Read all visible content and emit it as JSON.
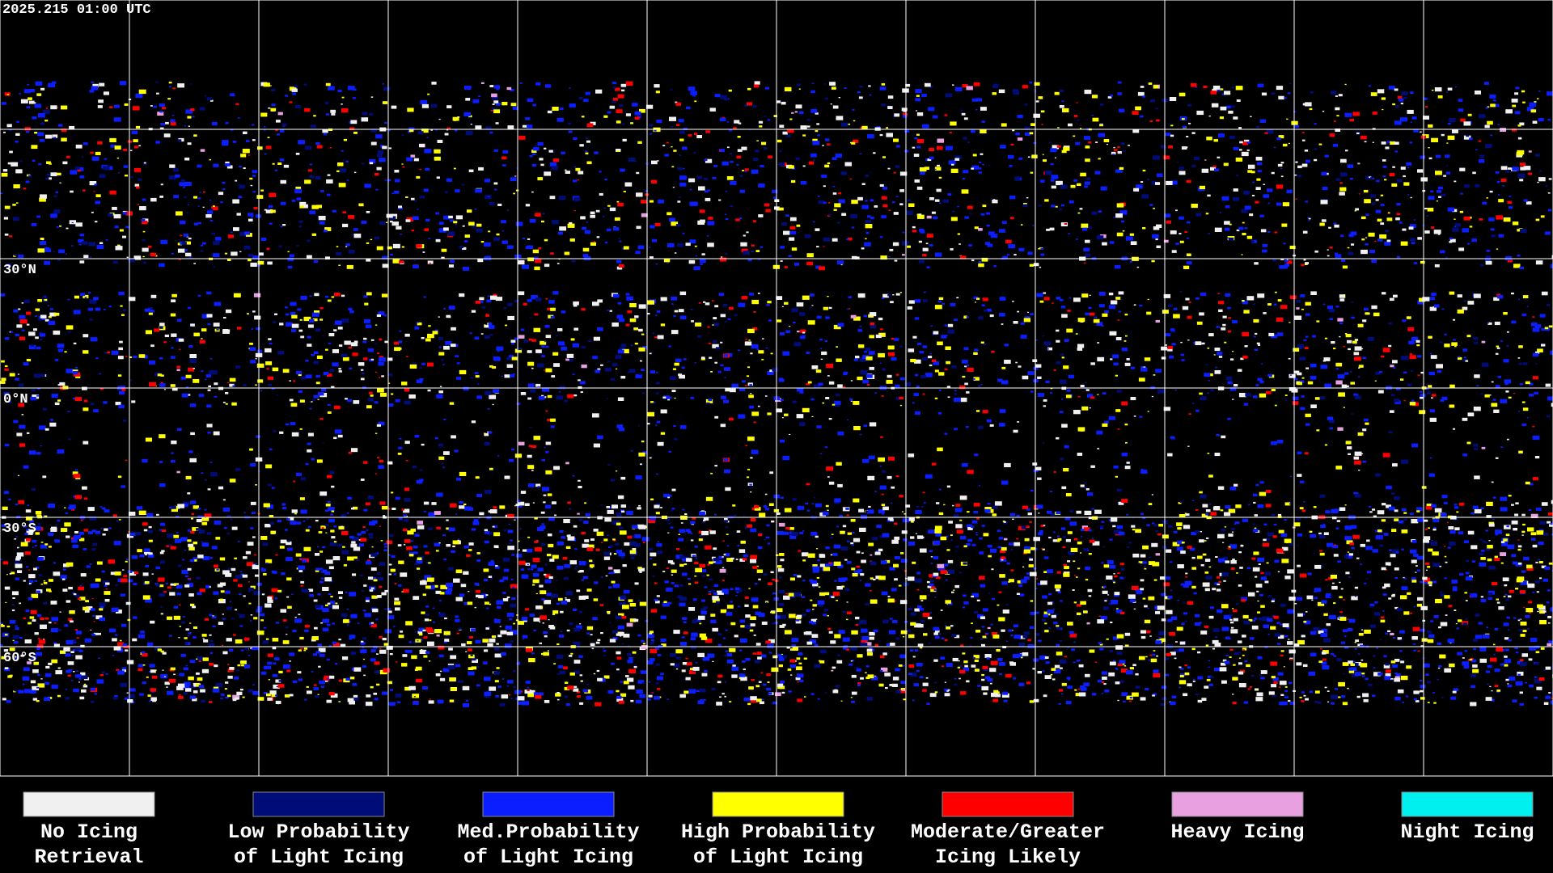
{
  "header": {
    "timestamp": "2025.215 01:00 UTC"
  },
  "map": {
    "lat_labels": [
      "30°N",
      "0°N",
      "30°S",
      "60°S"
    ]
  },
  "legend": [
    {
      "lines": [
        "No Icing",
        "Retrieval"
      ],
      "color": "#f0f0f0"
    },
    {
      "lines": [
        "Low Probability",
        "of Light Icing"
      ],
      "color": "#000c78"
    },
    {
      "lines": [
        "Med.Probability",
        "of Light Icing"
      ],
      "color": "#0a1eff"
    },
    {
      "lines": [
        "High Probability",
        "of Light Icing"
      ],
      "color": "#ffff00"
    },
    {
      "lines": [
        "Moderate/Greater",
        "Icing Likely"
      ],
      "color": "#ff0000"
    },
    {
      "lines": [
        "Heavy Icing"
      ],
      "color": "#e8a0e0"
    },
    {
      "lines": [
        "Night Icing"
      ],
      "color": "#00f0f0"
    }
  ]
}
